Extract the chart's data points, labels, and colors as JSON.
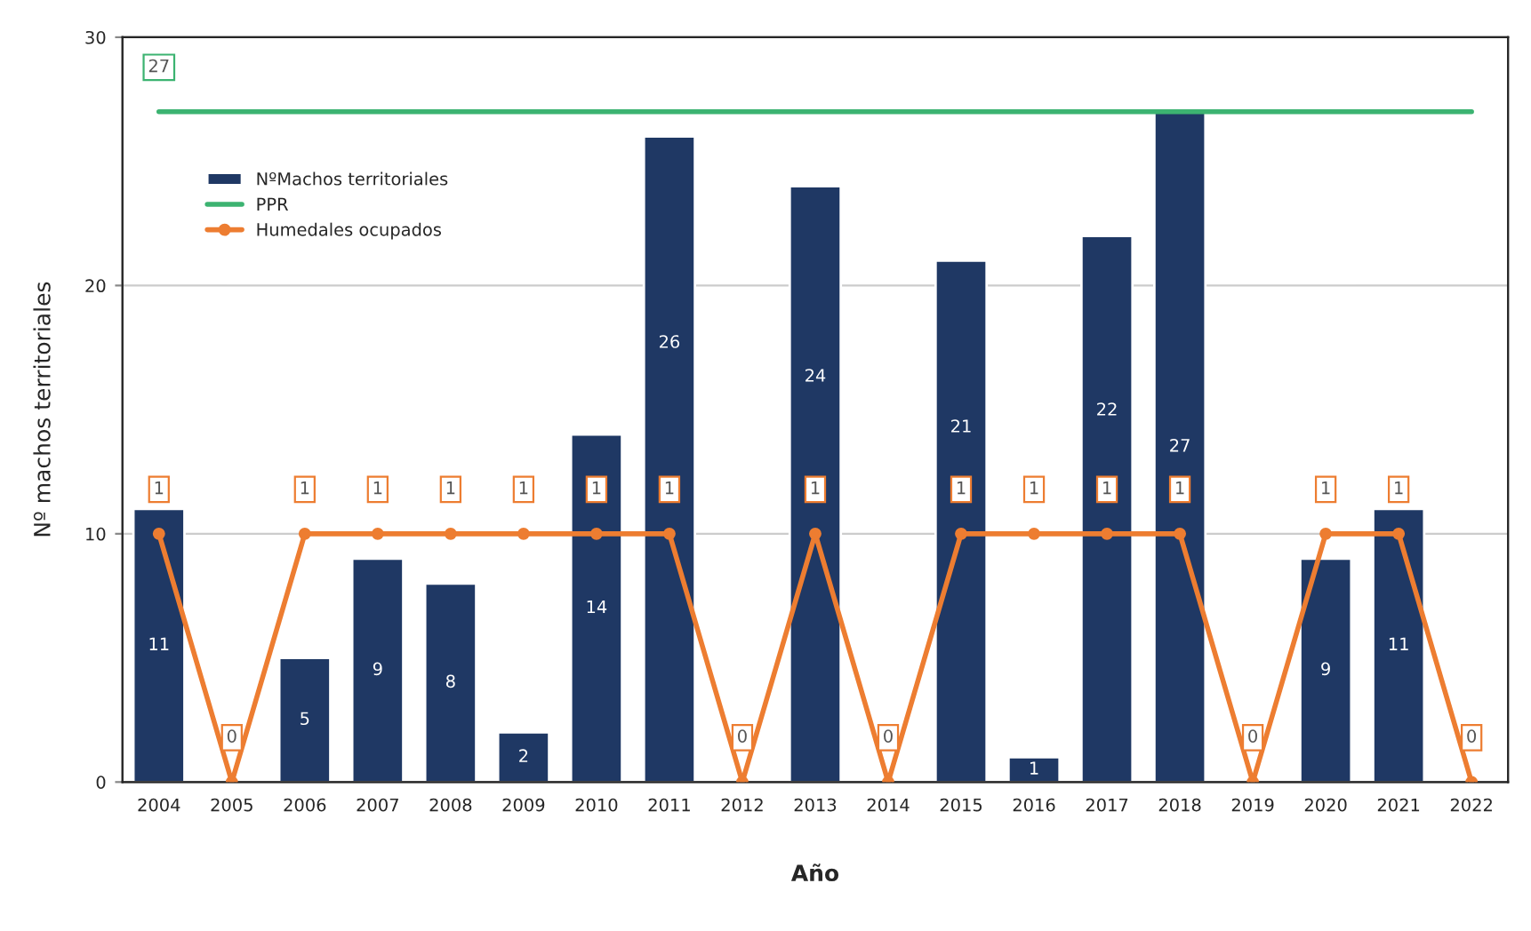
{
  "chart_data": {
    "type": "bar",
    "xlabel": "Año",
    "ylabel": "Nº machos territoriales",
    "categories": [
      "2004",
      "2005",
      "2006",
      "2007",
      "2008",
      "2009",
      "2010",
      "2011",
      "2012",
      "2013",
      "2014",
      "2015",
      "2016",
      "2017",
      "2018",
      "2019",
      "2020",
      "2021",
      "2022"
    ],
    "series": [
      {
        "name": "NºMachos territoriales",
        "color": "#1f3864",
        "values": [
          11,
          null,
          5,
          9,
          8,
          2,
          14,
          26,
          null,
          24,
          null,
          21,
          1,
          22,
          27,
          null,
          9,
          11,
          null
        ],
        "value_labels": [
          "11",
          null,
          "5",
          "9",
          "8",
          "2",
          "14",
          "26",
          null,
          "24",
          null,
          "21",
          "1",
          "22",
          "27",
          null,
          "9",
          "11",
          null
        ]
      },
      {
        "name": "PPR",
        "type": "line",
        "color": "#3cb371",
        "marker": "none",
        "values": [
          27,
          27,
          27,
          27,
          27,
          27,
          27,
          27,
          27,
          27,
          27,
          27,
          27,
          27,
          27,
          27,
          27,
          27,
          27
        ],
        "value_labels": [
          "27",
          null,
          null,
          null,
          null,
          null,
          null,
          null,
          null,
          null,
          null,
          null,
          null,
          null,
          null,
          null,
          null,
          null,
          null
        ]
      },
      {
        "name": "Humedales ocupados",
        "type": "line",
        "color": "#ed7d31",
        "marker": "circle",
        "axis": "y2",
        "values": [
          1,
          0,
          1,
          1,
          1,
          1,
          1,
          1,
          0,
          1,
          0,
          1,
          1,
          1,
          1,
          0,
          1,
          1,
          0
        ],
        "value_labels": [
          "1",
          "0",
          "1",
          "1",
          "1",
          "1",
          "1",
          "1",
          "0",
          "1",
          "0",
          "1",
          "1",
          "1",
          "1",
          "0",
          "1",
          "1",
          "0"
        ]
      }
    ],
    "ylim": [
      0,
      30
    ],
    "y2lim": [
      0,
      3
    ],
    "yticks": [
      0,
      10,
      20,
      30
    ],
    "grid": "y",
    "legend": "top left"
  }
}
